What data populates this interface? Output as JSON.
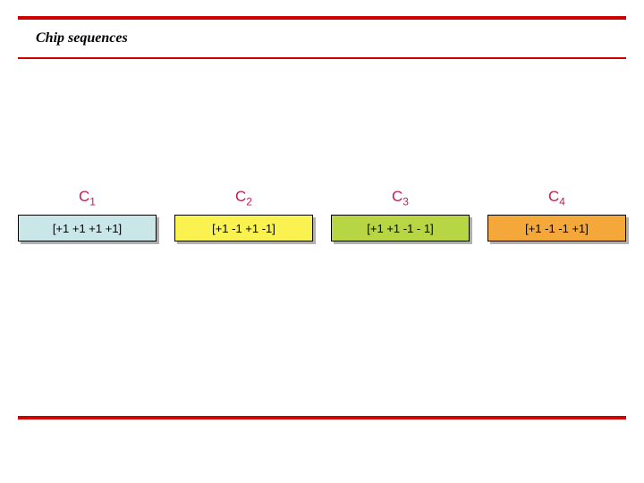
{
  "title": "Chip sequences",
  "rule_color": "#d00000",
  "title_underline_color": "#d00000",
  "label_color": "#c02050",
  "chips": [
    {
      "label_main": "C",
      "label_sub": "1",
      "sequence": "[+1  +1  +1  +1]",
      "bg": "#c9e6e8"
    },
    {
      "label_main": "C",
      "label_sub": "2",
      "sequence": "[+1  -1  +1  -1]",
      "bg": "#faf250"
    },
    {
      "label_main": "C",
      "label_sub": "3",
      "sequence": "[+1  +1  -1  - 1]",
      "bg": "#b8d643"
    },
    {
      "label_main": "C",
      "label_sub": "4",
      "sequence": "[+1  -1  -1  +1]",
      "bg": "#f5a83a"
    }
  ]
}
